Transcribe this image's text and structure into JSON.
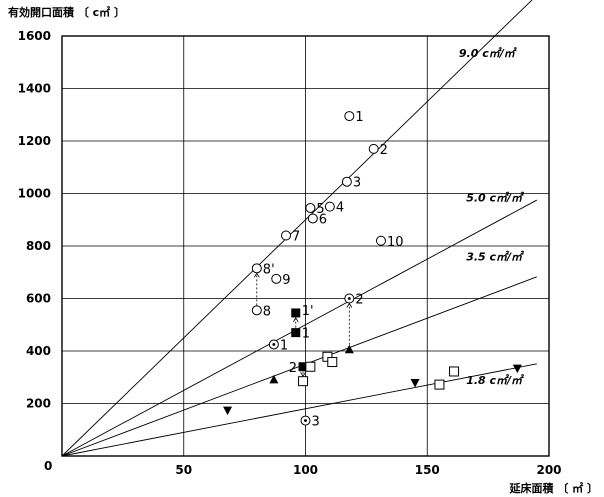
{
  "chart_data": {
    "type": "scatter",
    "title": "",
    "xlabel": "延床面積 〔 ㎡ 〕",
    "ylabel": "有効開口面積 〔 c㎡ 〕",
    "xlim": [
      0,
      200
    ],
    "ylim": [
      0,
      1600
    ],
    "x_ticks": [
      0,
      50,
      100,
      150,
      200
    ],
    "y_ticks": [
      200,
      400,
      600,
      800,
      1000,
      1200,
      1400,
      1600
    ],
    "origin_label": "0",
    "grid": true,
    "reference_lines": [
      {
        "slope": 9.0,
        "label": "9.0 c㎡/㎡",
        "x_end": 195,
        "label_at": [
          163,
          1520
        ]
      },
      {
        "slope": 5.0,
        "label": "5.0 c㎡/㎡",
        "x_end": 195,
        "label_at": [
          166,
          970
        ]
      },
      {
        "slope": 3.5,
        "label": "3.5 c㎡/㎡",
        "x_end": 195,
        "label_at": [
          166,
          745
        ]
      },
      {
        "slope": 1.8,
        "label": "1.8 c㎡/㎡",
        "x_end": 195,
        "label_at": [
          166,
          275
        ]
      }
    ],
    "series": [
      {
        "marker": "circle",
        "points": [
          {
            "x": 118,
            "y": 1295,
            "label": "1"
          },
          {
            "x": 128,
            "y": 1170,
            "label": "2"
          },
          {
            "x": 117,
            "y": 1045,
            "label": "3"
          },
          {
            "x": 110,
            "y": 950,
            "label": "4"
          },
          {
            "x": 102,
            "y": 945,
            "label": "5"
          },
          {
            "x": 103,
            "y": 905,
            "label": "6"
          },
          {
            "x": 92,
            "y": 840,
            "label": "7"
          },
          {
            "x": 80,
            "y": 715,
            "label": "8'"
          },
          {
            "x": 88,
            "y": 675,
            "label": "9"
          },
          {
            "x": 131,
            "y": 820,
            "label": "10"
          },
          {
            "x": 80,
            "y": 555,
            "label": "8"
          }
        ]
      },
      {
        "marker": "circle-dot",
        "points": [
          {
            "x": 118,
            "y": 600,
            "label": "2"
          },
          {
            "x": 87,
            "y": 425,
            "label": "1"
          },
          {
            "x": 100,
            "y": 135,
            "label": "3"
          }
        ]
      },
      {
        "marker": "filled-square",
        "points": [
          {
            "x": 96,
            "y": 545,
            "label": "1'"
          },
          {
            "x": 96,
            "y": 470,
            "label": "1"
          },
          {
            "x": 99,
            "y": 340,
            "label": "2"
          }
        ]
      },
      {
        "marker": "open-square",
        "points": [
          {
            "x": 99,
            "y": 285,
            "label": ""
          },
          {
            "x": 102,
            "y": 340,
            "label": ""
          },
          {
            "x": 109,
            "y": 378,
            "label": ""
          },
          {
            "x": 111,
            "y": 358,
            "label": ""
          },
          {
            "x": 155,
            "y": 272,
            "label": ""
          },
          {
            "x": 161,
            "y": 322,
            "label": ""
          }
        ]
      },
      {
        "marker": "filled-triangle-up",
        "points": [
          {
            "x": 87,
            "y": 290,
            "label": ""
          },
          {
            "x": 118,
            "y": 405,
            "label": ""
          }
        ]
      },
      {
        "marker": "filled-triangle-down",
        "points": [
          {
            "x": 68,
            "y": 175,
            "label": ""
          },
          {
            "x": 145,
            "y": 280,
            "label": ""
          },
          {
            "x": 187,
            "y": 335,
            "label": ""
          }
        ]
      }
    ],
    "connectors": [
      {
        "from": [
          80,
          555
        ],
        "to": [
          80,
          715
        ]
      },
      {
        "from": [
          96,
          470
        ],
        "to": [
          96,
          545
        ]
      },
      {
        "from": [
          118,
          405
        ],
        "to": [
          118,
          600
        ]
      },
      {
        "from": [
          99,
          340
        ],
        "to": [
          99,
          285
        ]
      }
    ]
  }
}
